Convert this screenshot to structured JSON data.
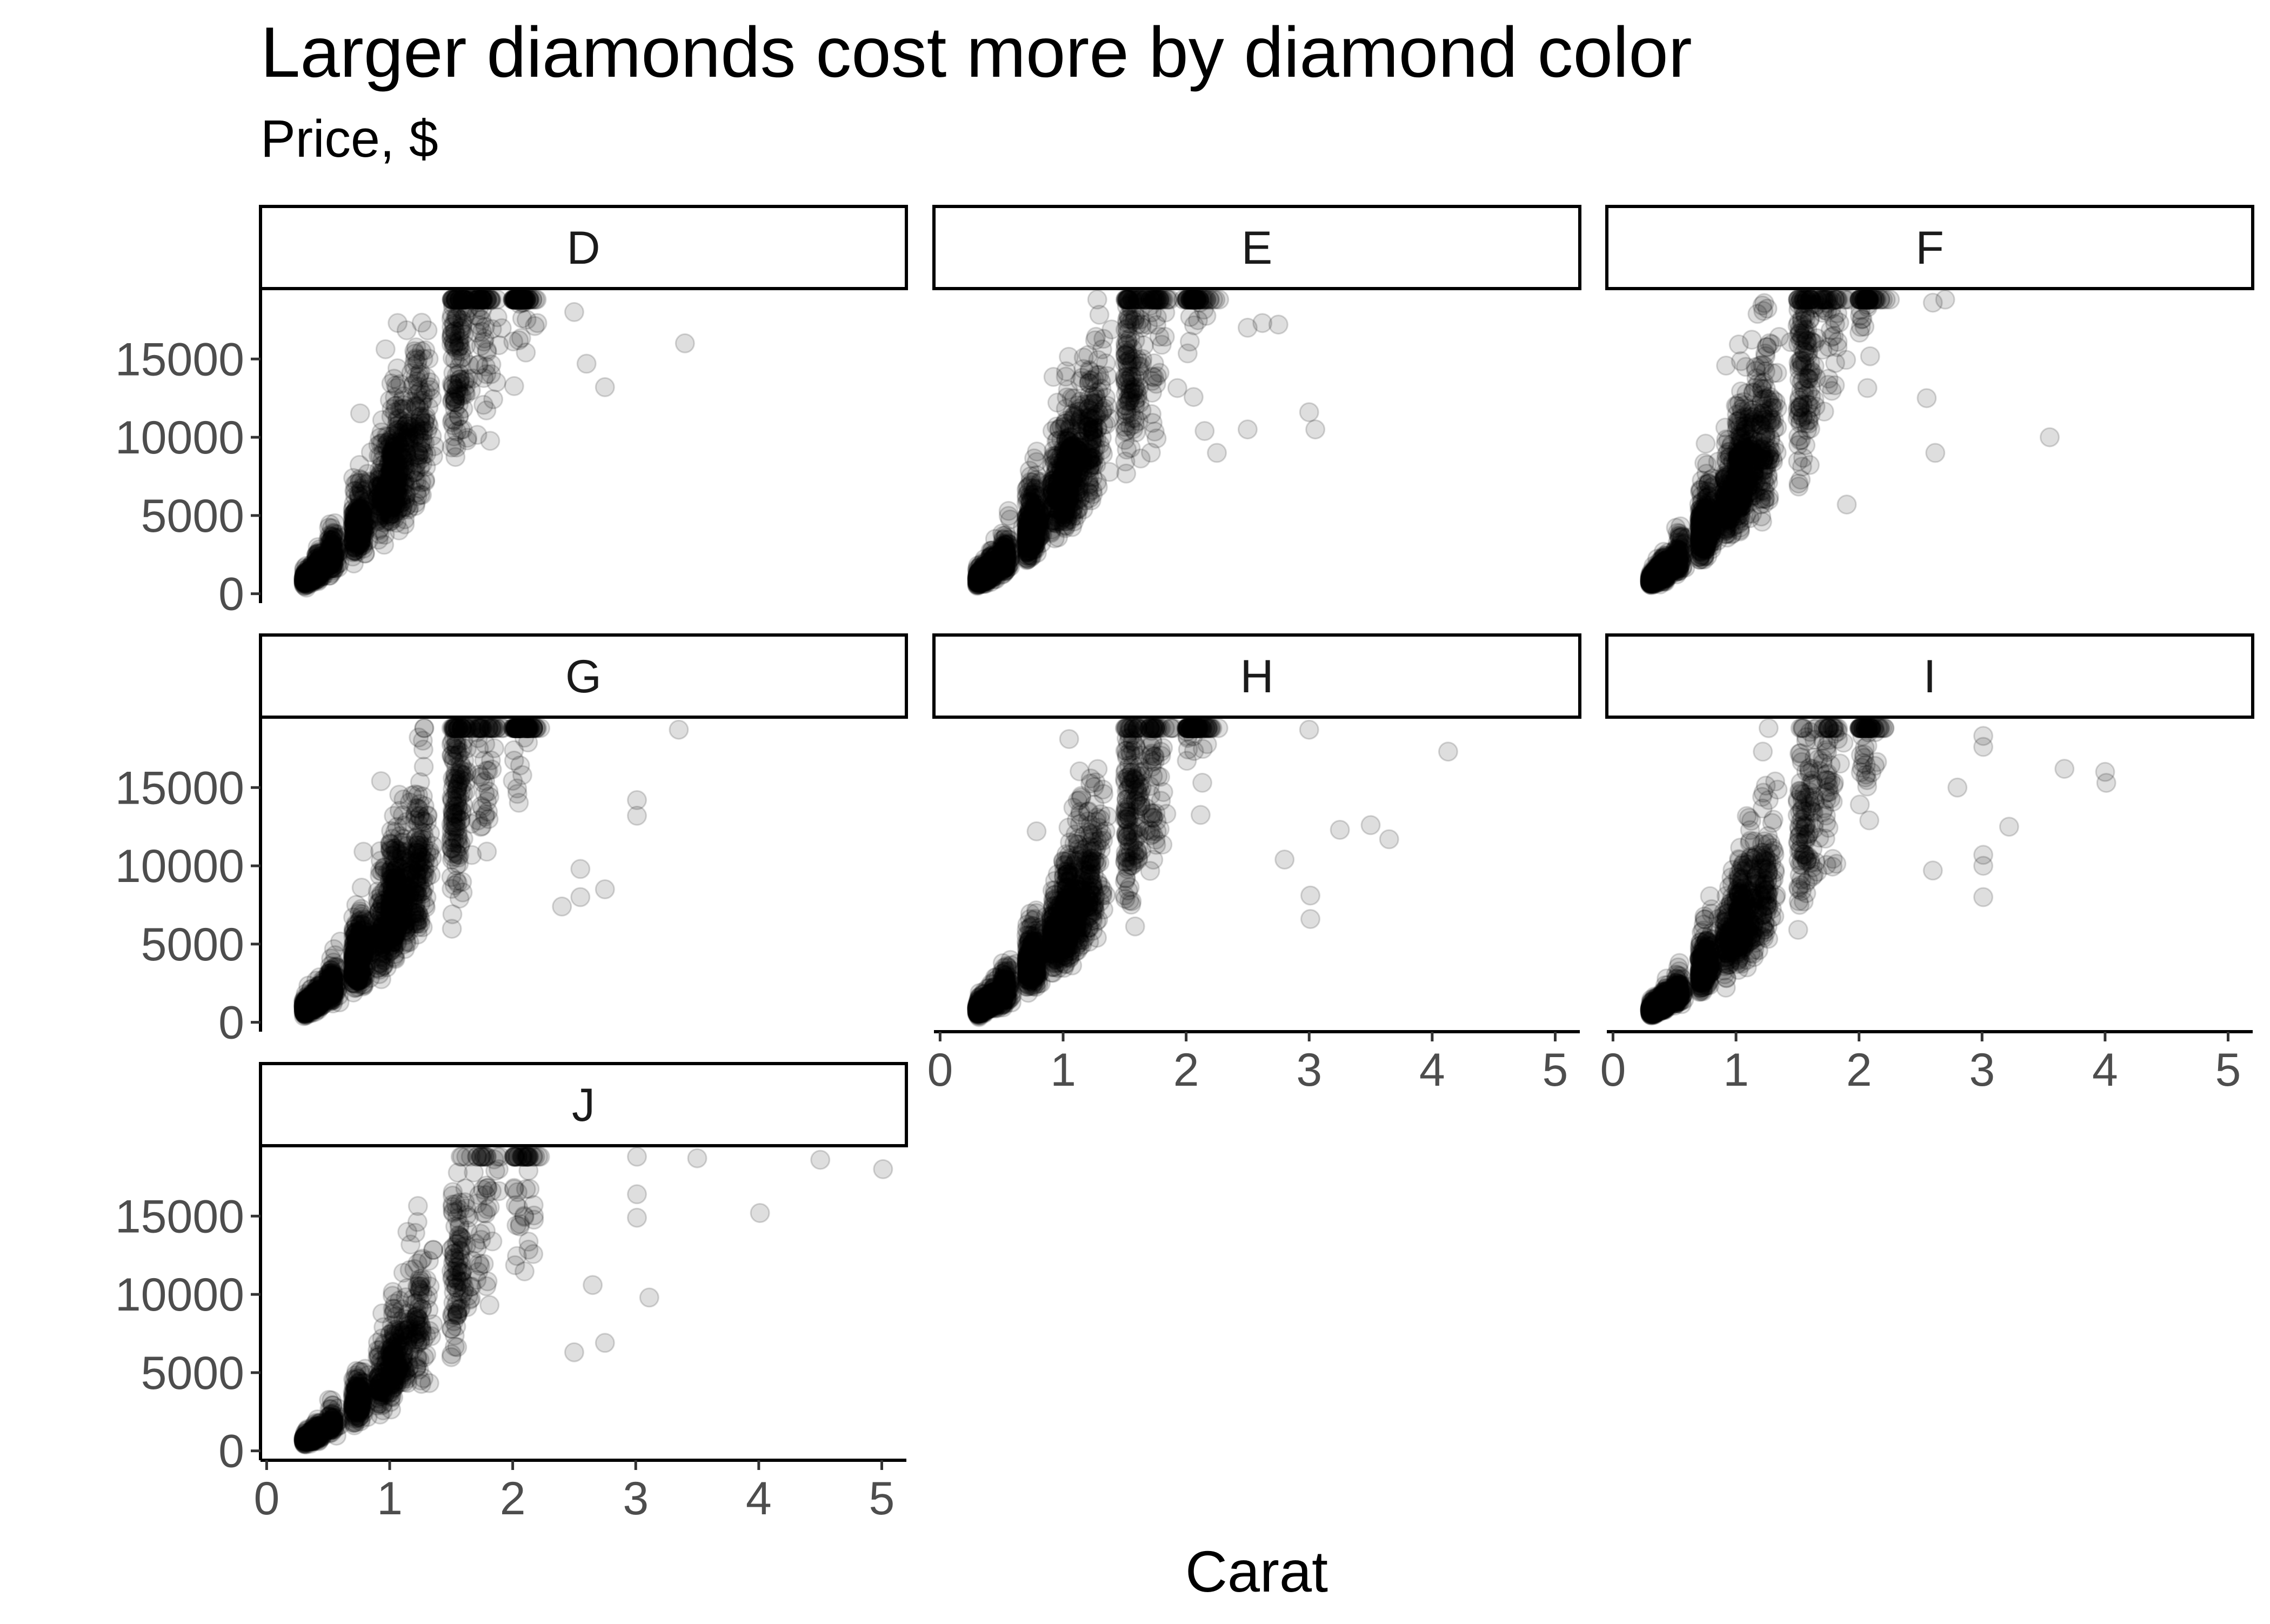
{
  "chart_data": {
    "type": "scatter",
    "title": "Larger diamonds cost more by diamond color",
    "subtitle": "Price, $",
    "xlabel": "Carat",
    "ylabel": "",
    "xlim": [
      -0.05,
      5.2
    ],
    "ylim": [
      -600,
      19500
    ],
    "x_ticks": [
      0,
      1,
      2,
      3,
      4,
      5
    ],
    "y_ticks": [
      0,
      5000,
      10000,
      15000
    ],
    "grid": false,
    "legend": "none",
    "facet_by": "color",
    "facet_layout": {
      "ncol": 3,
      "nrow": 3
    },
    "point_color": "#000000",
    "point_alpha": 0.13,
    "panels": [
      {
        "label": "D",
        "n_points": 1600,
        "outliers": [
          [
            2.5,
            18000
          ],
          [
            2.6,
            14700
          ],
          [
            2.75,
            13200
          ],
          [
            3.4,
            16000
          ],
          [
            2.2,
            17300
          ],
          [
            2.05,
            16200
          ]
        ]
      },
      {
        "label": "E",
        "n_points": 1800,
        "outliers": [
          [
            2.5,
            17000
          ],
          [
            2.62,
            17300
          ],
          [
            2.75,
            17200
          ],
          [
            3.0,
            11600
          ],
          [
            3.05,
            10500
          ],
          [
            2.5,
            10500
          ],
          [
            2.25,
            9000
          ],
          [
            2.15,
            10400
          ]
        ]
      },
      {
        "label": "F",
        "n_points": 1800,
        "outliers": [
          [
            2.55,
            12500
          ],
          [
            2.62,
            9000
          ],
          [
            3.55,
            10000
          ],
          [
            2.7,
            18800
          ],
          [
            2.6,
            18600
          ],
          [
            1.9,
            5700
          ]
        ]
      },
      {
        "label": "G",
        "n_points": 2000,
        "outliers": [
          [
            3.01,
            14200
          ],
          [
            3.01,
            13200
          ],
          [
            2.75,
            8500
          ],
          [
            2.55,
            8000
          ],
          [
            3.35,
            18700
          ],
          [
            2.55,
            9800
          ],
          [
            2.4,
            7400
          ]
        ]
      },
      {
        "label": "H",
        "n_points": 1900,
        "outliers": [
          [
            4.13,
            17300
          ],
          [
            3.0,
            18700
          ],
          [
            3.5,
            12600
          ],
          [
            3.65,
            11700
          ],
          [
            3.01,
            8100
          ],
          [
            3.01,
            6600
          ],
          [
            2.8,
            10400
          ],
          [
            3.25,
            12300
          ]
        ]
      },
      {
        "label": "I",
        "n_points": 1500,
        "outliers": [
          [
            3.67,
            16200
          ],
          [
            4.0,
            16000
          ],
          [
            4.01,
            15300
          ],
          [
            3.01,
            18300
          ],
          [
            3.01,
            17600
          ],
          [
            3.01,
            10700
          ],
          [
            3.01,
            10000
          ],
          [
            3.01,
            8000
          ],
          [
            3.22,
            12500
          ],
          [
            2.8,
            15000
          ],
          [
            2.6,
            9700
          ]
        ]
      },
      {
        "label": "J",
        "n_points": 1100,
        "outliers": [
          [
            4.5,
            18600
          ],
          [
            5.01,
            18000
          ],
          [
            4.01,
            15200
          ],
          [
            3.5,
            18700
          ],
          [
            3.11,
            9800
          ],
          [
            3.01,
            18800
          ],
          [
            3.01,
            16400
          ],
          [
            3.01,
            14900
          ],
          [
            2.75,
            6900
          ],
          [
            2.65,
            10600
          ],
          [
            2.5,
            6300
          ]
        ]
      }
    ]
  }
}
